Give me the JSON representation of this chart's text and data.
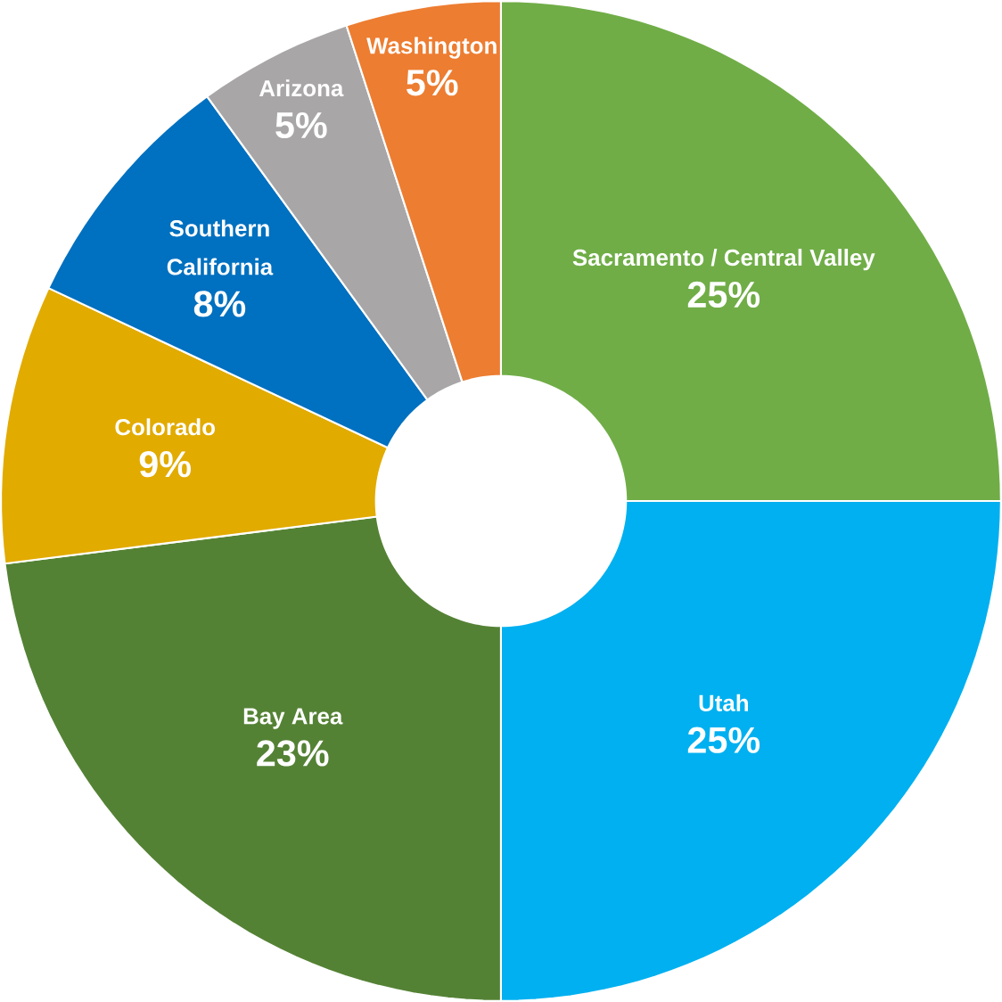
{
  "chart_data": {
    "type": "donut",
    "categories": [
      "Sacramento / Central Valley",
      "Utah",
      "Bay Area",
      "Colorado",
      "Southern California",
      "Arizona",
      "Washington"
    ],
    "values": [
      25,
      25,
      23,
      9,
      8,
      5,
      5
    ],
    "value_labels": [
      "25%",
      "25%",
      "23%",
      "9%",
      "8%",
      "5%",
      "5%"
    ],
    "colors": [
      "#70ad47",
      "#00b0f0",
      "#548235",
      "#e2ab00",
      "#0070c0",
      "#a9a6a8",
      "#ed7d31"
    ]
  }
}
